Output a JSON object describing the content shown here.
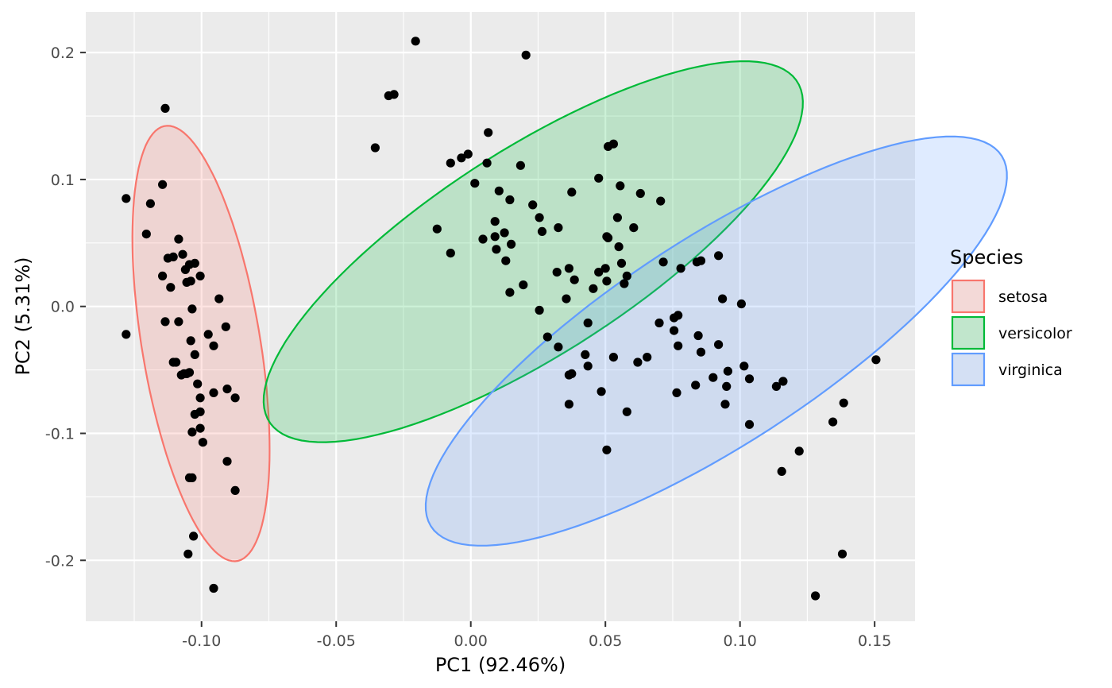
{
  "chart_data": {
    "type": "scatter",
    "title": "",
    "xlabel": "PC1 (92.46%)",
    "ylabel": "PC2 (5.31%)",
    "xlim": [
      -0.143,
      0.165
    ],
    "ylim": [
      -0.248,
      0.232
    ],
    "x_ticks": [
      {
        "value": -0.1,
        "label": "-0.10"
      },
      {
        "value": -0.05,
        "label": "-0.05"
      },
      {
        "value": 0.0,
        "label": "0.00"
      },
      {
        "value": 0.05,
        "label": "0.05"
      },
      {
        "value": 0.1,
        "label": "0.10"
      },
      {
        "value": 0.15,
        "label": "0.15"
      }
    ],
    "y_ticks": [
      {
        "value": 0.2,
        "label": "0.2"
      },
      {
        "value": 0.1,
        "label": "0.1"
      },
      {
        "value": 0.0,
        "label": "0.0"
      },
      {
        "value": -0.1,
        "label": "-0.1"
      },
      {
        "value": -0.2,
        "label": "-0.2"
      }
    ],
    "grid": true,
    "legend": {
      "title": "Species",
      "position": "right",
      "entries": [
        "setosa",
        "versicolor",
        "virginica"
      ]
    },
    "series": [
      {
        "name": "setosa",
        "color": "#F8766D",
        "ellipse": {
          "cx": -0.1002,
          "cy": -0.0292,
          "a": 0.172,
          "b": 0.0222,
          "angle_deg": -85.8
        },
        "points": [
          [
            -0.128,
            0.085
          ],
          [
            -0.128,
            -0.022
          ],
          [
            -0.1135,
            0.156
          ],
          [
            -0.119,
            0.081
          ],
          [
            -0.1205,
            0.057
          ],
          [
            -0.1145,
            0.096
          ],
          [
            -0.1085,
            0.053
          ],
          [
            -0.1125,
            0.038
          ],
          [
            -0.1105,
            0.039
          ],
          [
            -0.107,
            0.041
          ],
          [
            -0.106,
            0.029
          ],
          [
            -0.1145,
            0.024
          ],
          [
            -0.1115,
            0.015
          ],
          [
            -0.1045,
            0.033
          ],
          [
            -0.1025,
            0.034
          ],
          [
            -0.1055,
            0.019
          ],
          [
            -0.104,
            0.02
          ],
          [
            -0.1005,
            0.024
          ],
          [
            -0.1035,
            -0.002
          ],
          [
            -0.0935,
            0.006
          ],
          [
            -0.1135,
            -0.012
          ],
          [
            -0.1085,
            -0.012
          ],
          [
            -0.104,
            -0.027
          ],
          [
            -0.0975,
            -0.022
          ],
          [
            -0.091,
            -0.016
          ],
          [
            -0.1105,
            -0.044
          ],
          [
            -0.1095,
            -0.044
          ],
          [
            -0.1065,
            -0.053
          ],
          [
            -0.1045,
            -0.052
          ],
          [
            -0.1025,
            -0.038
          ],
          [
            -0.0955,
            -0.031
          ],
          [
            -0.1075,
            -0.054
          ],
          [
            -0.1015,
            -0.061
          ],
          [
            -0.1005,
            -0.072
          ],
          [
            -0.0955,
            -0.068
          ],
          [
            -0.0905,
            -0.065
          ],
          [
            -0.0875,
            -0.072
          ],
          [
            -0.1025,
            -0.085
          ],
          [
            -0.1005,
            -0.083
          ],
          [
            -0.1035,
            -0.099
          ],
          [
            -0.1005,
            -0.096
          ],
          [
            -0.0995,
            -0.107
          ],
          [
            -0.1045,
            -0.135
          ],
          [
            -0.1035,
            -0.135
          ],
          [
            -0.0905,
            -0.122
          ],
          [
            -0.0875,
            -0.145
          ],
          [
            -0.103,
            -0.181
          ],
          [
            -0.105,
            -0.195
          ],
          [
            -0.0955,
            -0.222
          ],
          [
            -0.1055,
            -0.053
          ]
        ]
      },
      {
        "name": "versicolor",
        "color": "#00BA38",
        "ellipse": {
          "cx": 0.0232,
          "cy": 0.0431,
          "a": 0.172,
          "b": 0.0545,
          "angle_deg": 59.0
        },
        "points": [
          [
            -0.0355,
            0.125
          ],
          [
            -0.0305,
            0.166
          ],
          [
            -0.0285,
            0.167
          ],
          [
            -0.0205,
            0.209
          ],
          [
            0.0205,
            0.198
          ],
          [
            -0.0125,
            0.061
          ],
          [
            -0.0075,
            0.113
          ],
          [
            -0.0075,
            0.042
          ],
          [
            -0.0035,
            0.117
          ],
          [
            -0.001,
            0.12
          ],
          [
            0.0015,
            0.097
          ],
          [
            0.0045,
            0.053
          ],
          [
            0.006,
            0.113
          ],
          [
            0.0065,
            0.137
          ],
          [
            0.009,
            0.067
          ],
          [
            0.009,
            0.055
          ],
          [
            0.0105,
            0.091
          ],
          [
            0.0125,
            0.058
          ],
          [
            0.0145,
            0.084
          ],
          [
            0.013,
            0.036
          ],
          [
            0.015,
            0.049
          ],
          [
            0.0095,
            0.045
          ],
          [
            0.0145,
            0.011
          ],
          [
            0.0185,
            0.111
          ],
          [
            0.0195,
            0.017
          ],
          [
            0.023,
            0.08
          ],
          [
            0.0255,
            0.07
          ],
          [
            0.0265,
            0.059
          ],
          [
            0.0255,
            -0.003
          ],
          [
            0.0285,
            -0.024
          ],
          [
            0.032,
            0.027
          ],
          [
            0.0325,
            -0.032
          ],
          [
            0.0355,
            0.006
          ],
          [
            0.0365,
            0.03
          ],
          [
            0.0375,
            0.09
          ],
          [
            0.0385,
            0.021
          ],
          [
            0.0365,
            -0.054
          ],
          [
            0.0375,
            -0.053
          ],
          [
            0.0365,
            -0.077
          ],
          [
            0.0425,
            -0.038
          ],
          [
            0.0435,
            -0.013
          ],
          [
            0.0435,
            -0.047
          ],
          [
            0.0455,
            0.014
          ],
          [
            0.0475,
            0.027
          ],
          [
            0.0485,
            -0.067
          ],
          [
            0.05,
            0.03
          ],
          [
            0.0505,
            0.02
          ],
          [
            0.053,
            -0.04
          ],
          [
            0.0505,
            -0.113
          ],
          [
            0.058,
            -0.083
          ]
        ]
      },
      {
        "name": "virginica",
        "color": "#619CFF",
        "ellipse": {
          "cx": 0.0912,
          "cy": -0.0273,
          "a": 0.186,
          "b": 0.0551,
          "angle_deg": 58.5
        },
        "points": [
          [
            0.051,
            0.126
          ],
          [
            0.053,
            0.128
          ],
          [
            0.0475,
            0.101
          ],
          [
            0.0555,
            0.095
          ],
          [
            0.063,
            0.089
          ],
          [
            0.0705,
            0.083
          ],
          [
            0.0545,
            0.07
          ],
          [
            0.0605,
            0.062
          ],
          [
            0.0325,
            0.062
          ],
          [
            0.051,
            0.054
          ],
          [
            0.055,
            0.047
          ],
          [
            0.056,
            0.034
          ],
          [
            0.058,
            0.024
          ],
          [
            0.0715,
            0.035
          ],
          [
            0.078,
            0.03
          ],
          [
            0.084,
            0.035
          ],
          [
            0.0855,
            0.036
          ],
          [
            0.092,
            0.04
          ],
          [
            0.0935,
            0.006
          ],
          [
            0.1005,
            0.002
          ],
          [
            0.0755,
            -0.009
          ],
          [
            0.077,
            -0.007
          ],
          [
            0.07,
            -0.013
          ],
          [
            0.0755,
            -0.019
          ],
          [
            0.077,
            -0.031
          ],
          [
            0.0845,
            -0.023
          ],
          [
            0.0855,
            -0.036
          ],
          [
            0.092,
            -0.03
          ],
          [
            0.0955,
            -0.051
          ],
          [
            0.09,
            -0.056
          ],
          [
            0.095,
            -0.063
          ],
          [
            0.1015,
            -0.047
          ],
          [
            0.1035,
            -0.057
          ],
          [
            0.1135,
            -0.063
          ],
          [
            0.116,
            -0.059
          ],
          [
            0.0835,
            -0.062
          ],
          [
            0.0765,
            -0.068
          ],
          [
            0.0945,
            -0.077
          ],
          [
            0.1035,
            -0.093
          ],
          [
            0.062,
            -0.044
          ],
          [
            0.0655,
            -0.04
          ],
          [
            0.122,
            -0.114
          ],
          [
            0.1155,
            -0.13
          ],
          [
            0.1345,
            -0.091
          ],
          [
            0.1385,
            -0.076
          ],
          [
            0.1505,
            -0.042
          ],
          [
            0.138,
            -0.195
          ],
          [
            0.128,
            -0.228
          ],
          [
            0.0505,
            0.055
          ],
          [
            0.057,
            0.018
          ]
        ]
      }
    ]
  }
}
